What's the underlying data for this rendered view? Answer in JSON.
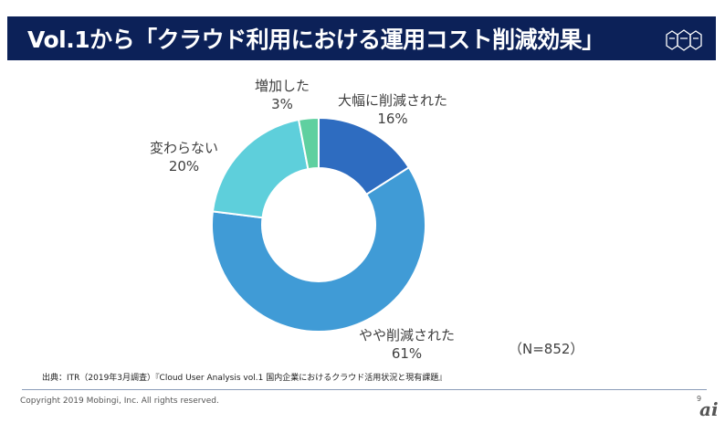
{
  "title": "Vol.1から「クラウド利用における運用コスト削減効果」",
  "chart_data": {
    "type": "pie",
    "donut": true,
    "slices": [
      {
        "label": "大幅に削減された",
        "value": 16,
        "value_label": "16%",
        "color": "#2e6cc0"
      },
      {
        "label": "やや削減された",
        "value": 61,
        "value_label": "61%",
        "color": "#409bd6"
      },
      {
        "label": "変わらない",
        "value": 20,
        "value_label": "20%",
        "color": "#5ecfdb"
      },
      {
        "label": "増加した",
        "value": 3,
        "value_label": "3%",
        "color": "#5fd0a0"
      }
    ],
    "annotation": "（N=852）"
  },
  "source": "出典：ITR（2019年3月調査）『Cloud User Analysis vol.1  国内企業におけるクラウド活用状況と現有課題』",
  "copyright": "Copyright 2019 Mobingi, Inc. All rights reserved.",
  "page_number": "9",
  "footer_logo": "ai"
}
